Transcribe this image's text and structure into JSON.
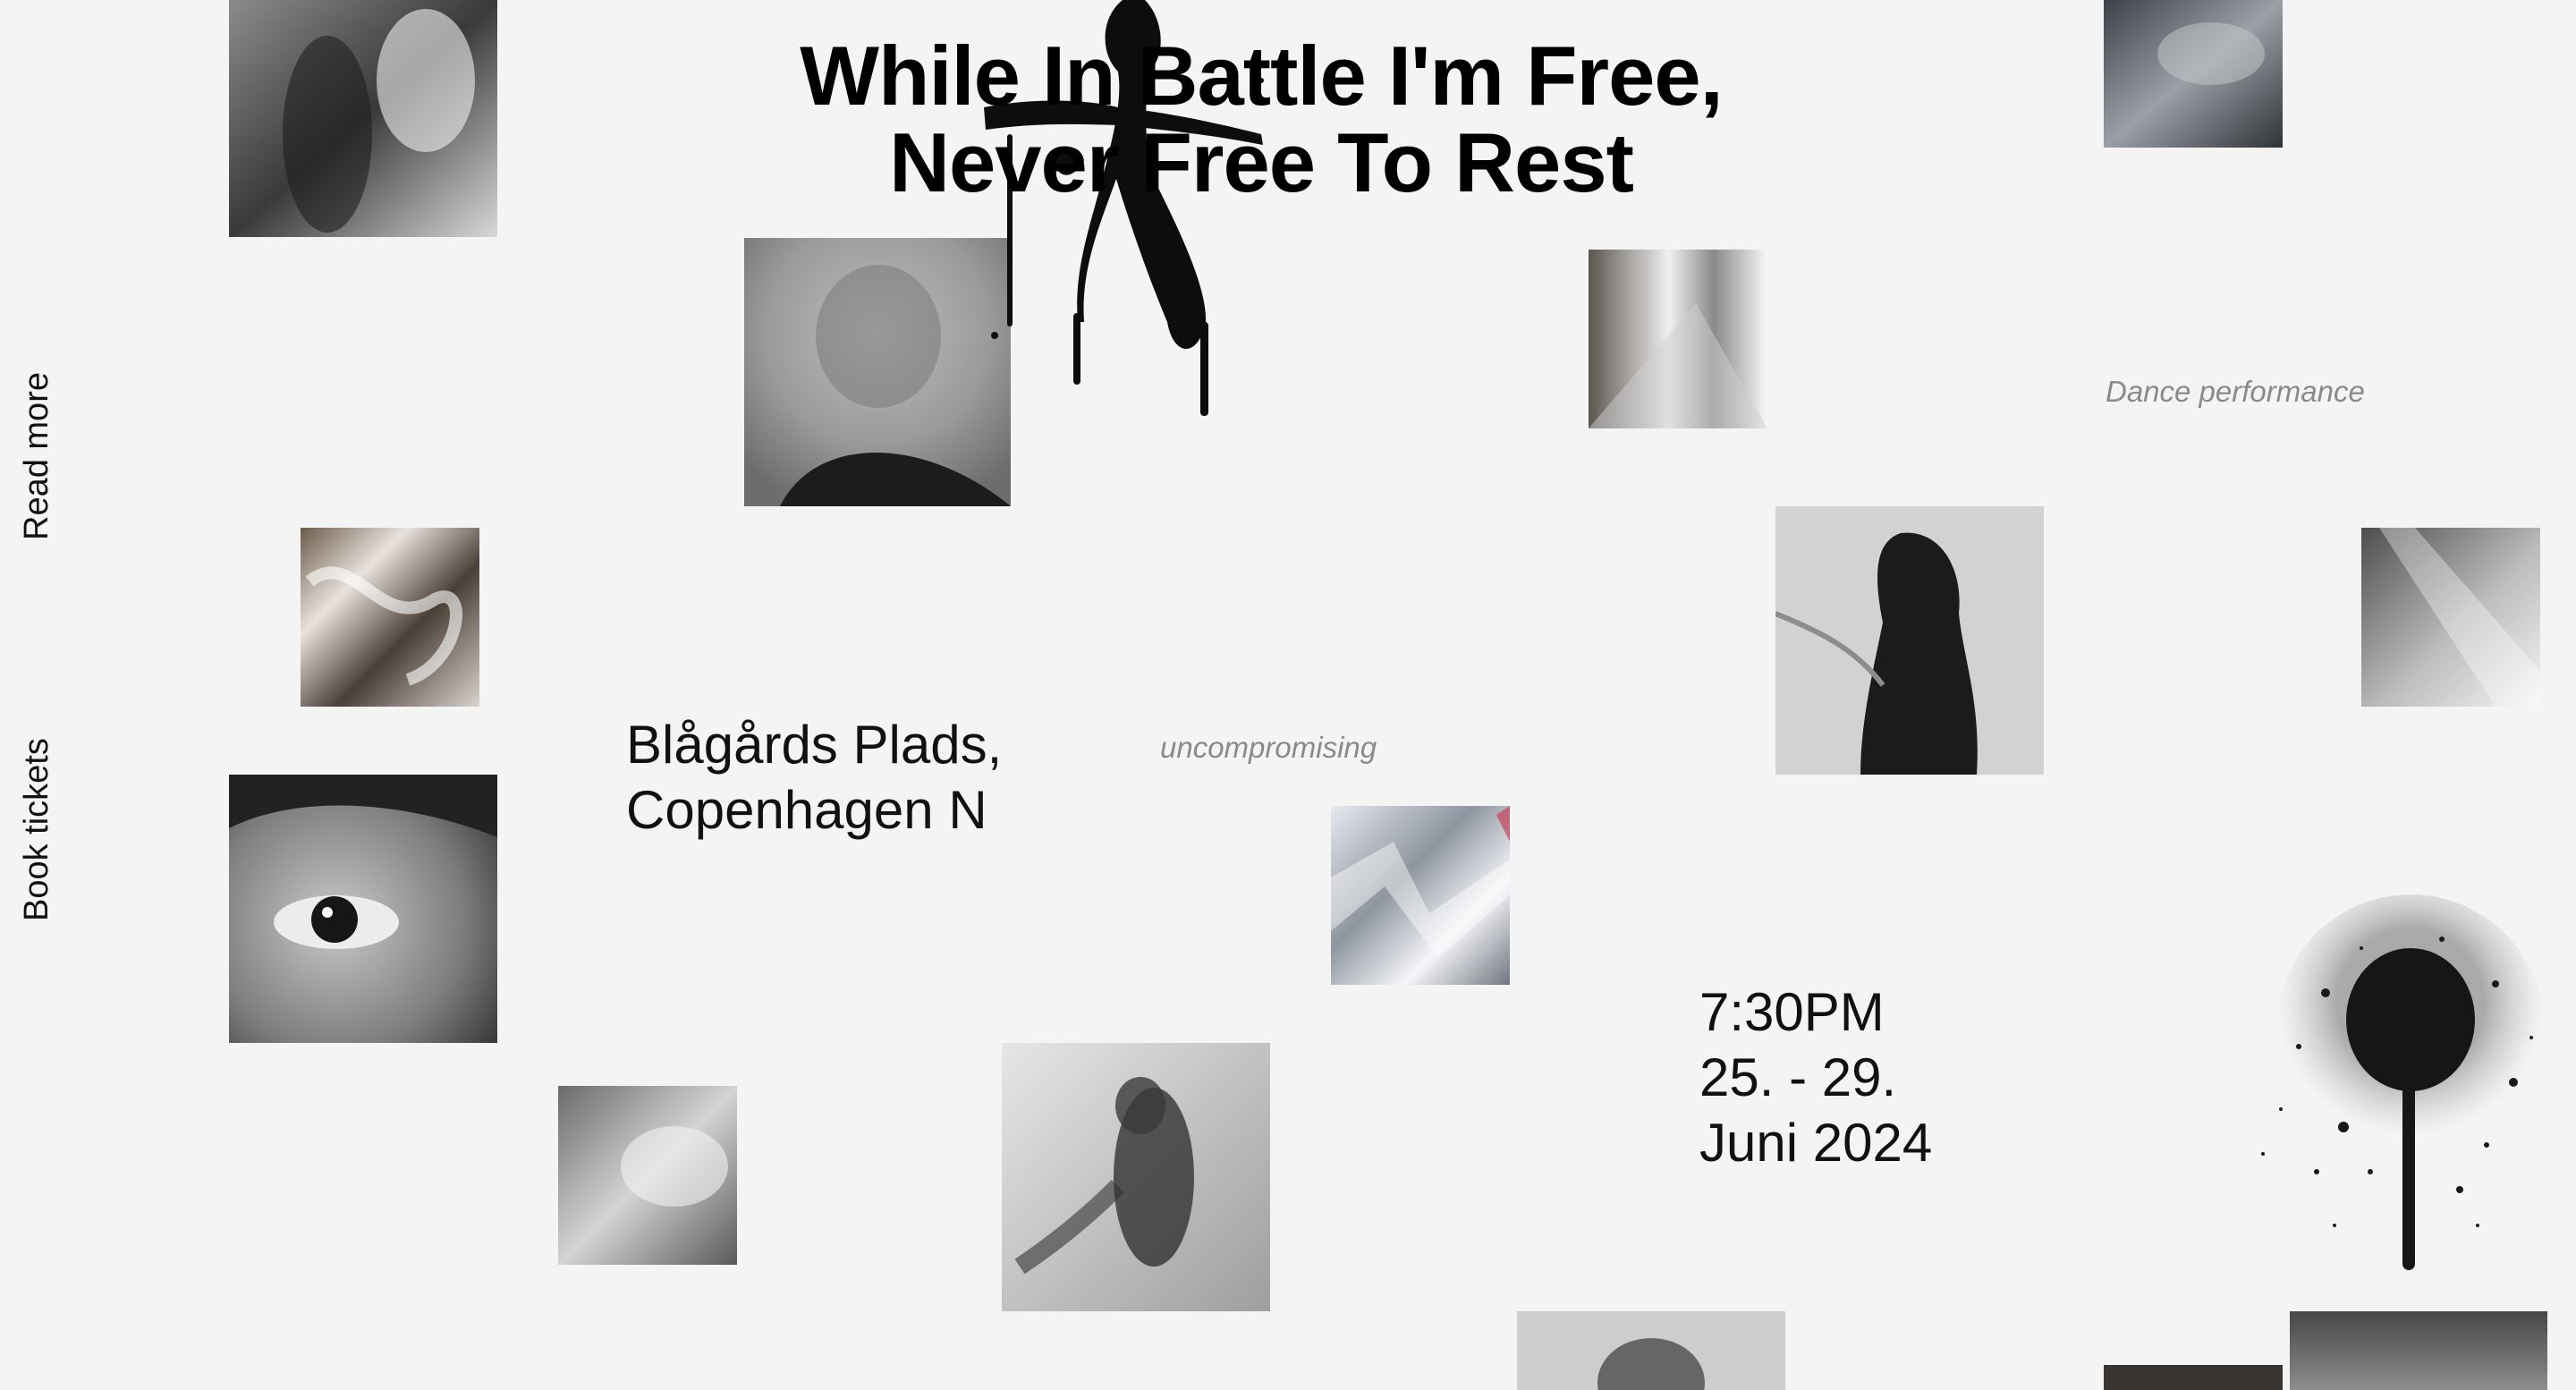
{
  "nav": {
    "read_more": "Read more",
    "book_tickets": "Book tickets"
  },
  "hero": {
    "title_line1": "While In Battle I'm Free,",
    "title_line2": "Never Free To Rest"
  },
  "details": {
    "venue_line1": "Blågårds Plads,",
    "venue_line2": "Copenhagen N",
    "time": "7:30PM",
    "dates": "25. - 29.",
    "month_year": "Juni 2024"
  },
  "tags": {
    "uncompromising": "uncompromising",
    "dance_performance": "Dance performance"
  },
  "colors": {
    "background": "#f4f4f4",
    "text": "#0a0a0a",
    "muted": "#8a8a8a"
  },
  "icons": {
    "brush_mark": "ink-brush-stroke",
    "spray_mark": "spray-paint-splatter"
  }
}
